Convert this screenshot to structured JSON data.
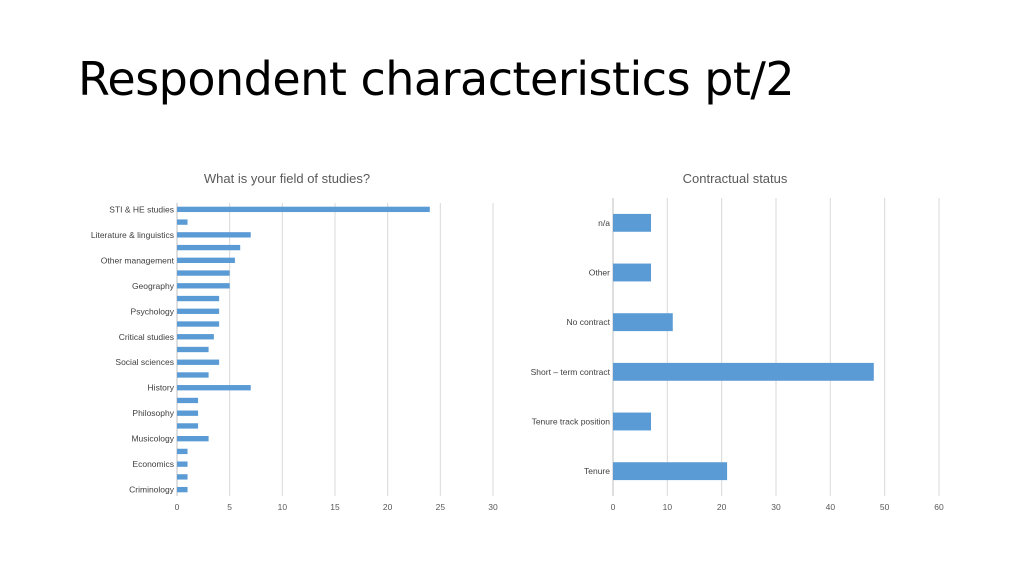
{
  "slide": {
    "title": "Respondent characteristics pt/2"
  },
  "colors": {
    "bar": "#5b9bd5"
  },
  "chart_data": [
    {
      "type": "bar",
      "orientation": "horizontal",
      "title": "What is your field of studies?",
      "categories": [
        "Criminology",
        "",
        "Economics",
        "",
        "Musicology",
        "",
        "Philosophy",
        "",
        "History",
        "",
        "Social sciences",
        "",
        "Critical studies",
        "",
        "Psychology",
        "",
        "Geography",
        "",
        "Other management",
        "",
        "Literature & linguistics",
        "",
        "STI & HE studies"
      ],
      "values": [
        1,
        1,
        1,
        1,
        3,
        2,
        2,
        2,
        7,
        3,
        4,
        3,
        3.5,
        4,
        4,
        4,
        5,
        5,
        5.5,
        6,
        7,
        1,
        24
      ],
      "xlim": [
        0,
        30
      ],
      "xticks": [
        "0",
        "5",
        "10",
        "15",
        "20",
        "25",
        "30"
      ],
      "grid": true
    },
    {
      "type": "bar",
      "orientation": "horizontal",
      "title": "Contractual status",
      "categories": [
        "Tenure",
        "Tenure track position",
        "Short – term contract",
        "No contract",
        "Other",
        "n/a"
      ],
      "values": [
        21,
        7,
        48,
        11,
        7,
        7
      ],
      "xlim": [
        0,
        60
      ],
      "xticks": [
        "0",
        "10",
        "20",
        "30",
        "40",
        "50",
        "60"
      ],
      "grid": true
    }
  ]
}
